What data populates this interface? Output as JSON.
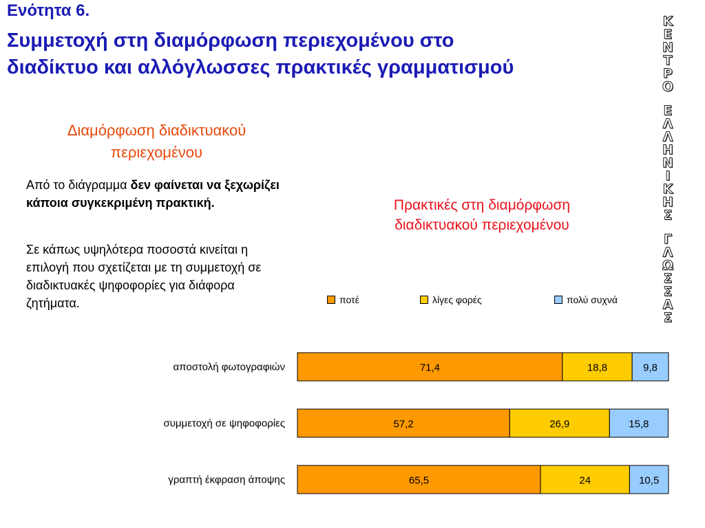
{
  "header": {
    "section": "Ενότητα 6.",
    "title_line1": "Συμμετοχή στη διαμόρφωση περιεχομένου στο",
    "title_line2": "διαδίκτυο και αλλόγλωσσες πρακτικές γραμματισμού"
  },
  "side": {
    "heading_line1": "Διαμόρφωση διαδικτυακού",
    "heading_line2": "περιεχομένου",
    "p1_plain": "Από το διάγραμμα ",
    "p1_bold": "δεν φαίνεται να ξεχωρίζει κάποια συγκεκριμένη πρακτική.",
    "p2": "Σε κάπως υψηλότερα ποσοστά κινείται η επιλογή που σχετίζεται με τη συμμετοχή σε διαδικτυακές ψηφοφορίες για διάφορα ζητήματα."
  },
  "vertical_brand": {
    "word1": [
      "Κ",
      "Ε",
      "Ν",
      "Τ",
      "Ρ",
      "Ο"
    ],
    "word2": [
      "Ε",
      "Λ",
      "Λ",
      "Η",
      "Ν",
      "Ι",
      "Κ",
      "Η",
      "Σ"
    ],
    "word3": [
      "Γ",
      "Λ",
      "Ω",
      "Σ",
      "Σ",
      "Α",
      "Σ"
    ]
  },
  "colors": {
    "accent_blue": "#1b1bb5",
    "heading_orange": "#e84a0c",
    "chart_title_red": "#e8121c",
    "never": "#ff9900",
    "sometimes": "#ffcc00",
    "often": "#99ccff"
  },
  "chart_data": {
    "type": "bar",
    "orientation": "horizontal",
    "stacked": true,
    "title_line1": "Πρακτικές στη διαμόρφωση",
    "title_line2": "διαδικτυακού περιεχομένου",
    "categories": [
      "αποστολή φωτογραφιών",
      "συμμετοχή σε ψηφοφορίες",
      "γραπτή έκφραση άποψης"
    ],
    "series": [
      {
        "name": "ποτέ",
        "values": [
          71.4,
          57.2,
          65.5
        ],
        "labels": [
          "71,4",
          "57,2",
          "65,5"
        ],
        "color": "#ff9900"
      },
      {
        "name": "λίγες φορές",
        "values": [
          18.8,
          26.9,
          24
        ],
        "labels": [
          "18,8",
          "26,9",
          "24"
        ],
        "color": "#ffcc00"
      },
      {
        "name": "πολύ συχνά",
        "values": [
          9.8,
          15.8,
          10.5
        ],
        "labels": [
          "9,8",
          "15,8",
          "10,5"
        ],
        "color": "#99ccff"
      }
    ],
    "xlim": [
      0,
      100
    ],
    "legend_position": "top",
    "grid": false
  }
}
